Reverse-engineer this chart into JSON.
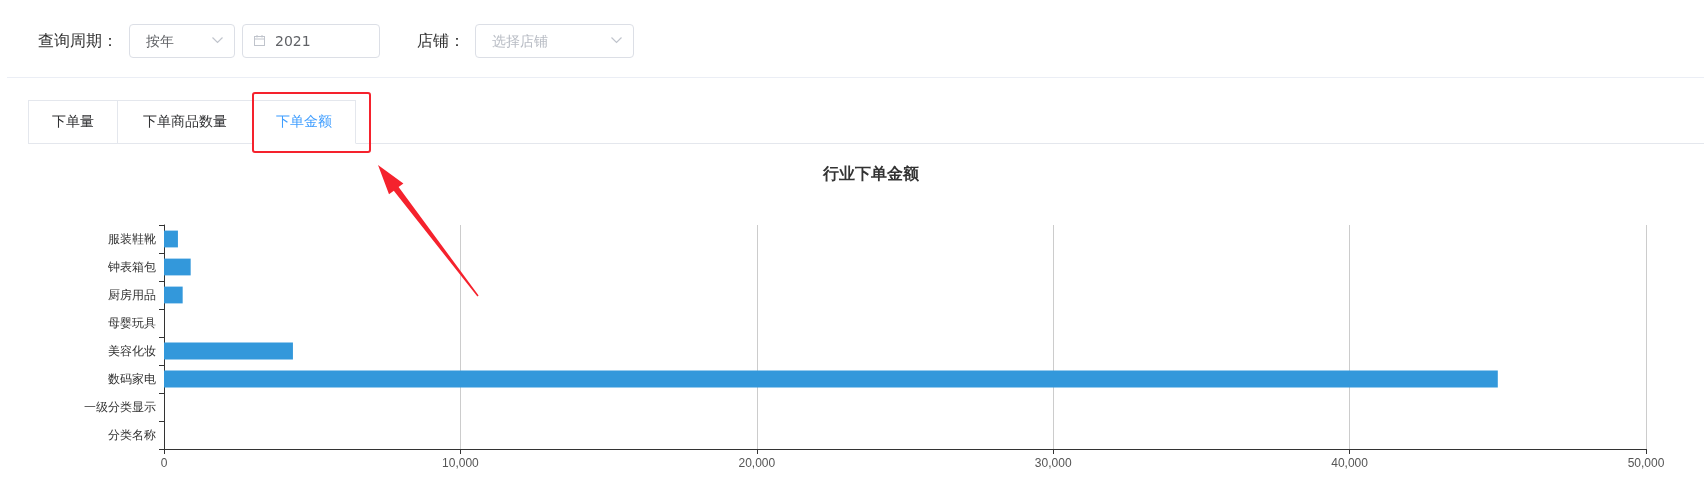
{
  "chart_data": {
    "type": "bar",
    "orientation": "horizontal",
    "title": "行业下单金额",
    "categories": [
      "服装鞋靴",
      "钟表箱包",
      "厨房用品",
      "母婴玩具",
      "美容化妆",
      "数码家电",
      "一级分类显示",
      "分类名称"
    ],
    "values": [
      470,
      900,
      630,
      0,
      4350,
      45000,
      0,
      0
    ],
    "color": "#3398db",
    "xlim": [
      0,
      50000
    ],
    "xticks": [
      0,
      {
        "value": 10000,
        "label": "10,000"
      },
      {
        "value": 20000,
        "label": "20,000"
      },
      {
        "value": 30000,
        "label": "30,000"
      },
      {
        "value": 40000,
        "label": "40,000"
      },
      {
        "value": 50000,
        "label": "50,000"
      }
    ],
    "grid": "x",
    "annotations": [
      "查询周期：",
      "按年",
      "2021",
      "店铺：",
      "选择店铺",
      "下单量",
      "下单商品数量",
      "下单金额"
    ]
  }
}
